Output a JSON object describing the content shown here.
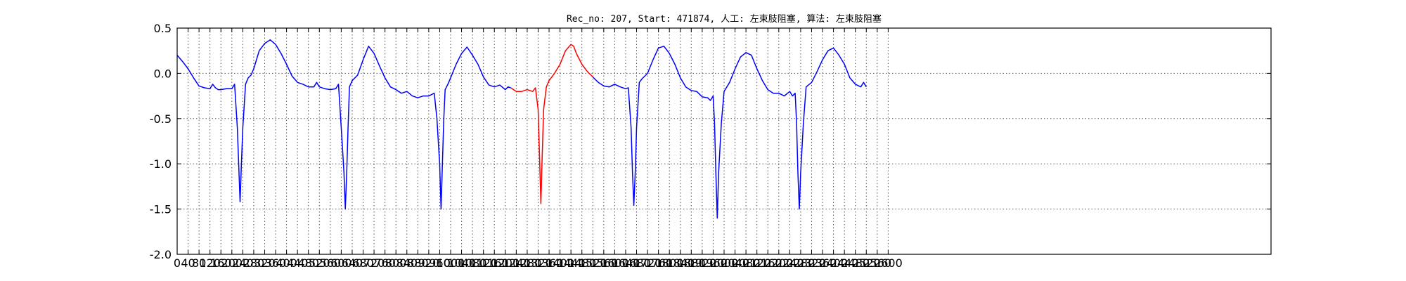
{
  "chart_data": {
    "type": "line",
    "title": "Rec_no: 207, Start: 471874, 人工: 左束肢阻塞, 算法: 左束肢阻塞",
    "xlabel": "",
    "ylabel": "",
    "xlim": [
      0,
      4000
    ],
    "ylim": [
      -2.0,
      0.5
    ],
    "yticks": [
      -2.0,
      -1.5,
      -1.0,
      -0.5,
      0.0,
      0.5
    ],
    "xticks": [
      0,
      40,
      80,
      120,
      160,
      200,
      240,
      280,
      320,
      360,
      400,
      440,
      480,
      520,
      560,
      600,
      640,
      680,
      720,
      760,
      800,
      840,
      880,
      920,
      960,
      1000,
      1040,
      1080,
      1120,
      1160,
      1200,
      1240,
      1280,
      1320,
      1360,
      1400,
      1440,
      1480,
      1520,
      1560,
      1600,
      1640,
      1680,
      1720,
      1760,
      1800,
      1840,
      1880,
      1920,
      1960,
      2000,
      2040,
      2080,
      2120,
      2160,
      2200,
      2240,
      2280,
      2320,
      2360,
      2400,
      2440,
      2480,
      2520,
      2560,
      2600
    ],
    "grid": true,
    "series": [
      {
        "color": "#0000ff",
        "x": [
          0,
          20,
          40,
          60,
          80,
          100,
          120,
          130,
          140,
          150,
          160,
          180,
          200,
          210,
          220,
          225,
          230,
          235,
          240,
          250,
          260,
          270,
          280,
          290,
          300,
          320,
          340,
          360,
          380,
          400,
          420,
          440,
          460,
          480,
          500,
          510,
          520,
          540,
          560,
          580,
          590,
          600,
          610,
          615,
          620,
          625,
          630,
          640,
          660,
          680,
          700,
          720,
          740,
          760,
          780,
          800,
          820,
          840,
          860,
          880,
          900,
          920,
          940,
          950,
          960,
          965,
          970,
          975,
          980,
          990,
          1000,
          1020,
          1040,
          1060,
          1080,
          1100,
          1120,
          1140,
          1160,
          1180,
          1200,
          1210,
          1220
        ],
        "y": [
          0.2,
          0.13,
          0.05,
          -0.05,
          -0.14,
          -0.16,
          -0.17,
          -0.12,
          -0.16,
          -0.18,
          -0.18,
          -0.17,
          -0.17,
          -0.12,
          -0.6,
          -1.0,
          -1.42,
          -1.0,
          -0.6,
          -0.12,
          -0.05,
          -0.02,
          0.05,
          0.15,
          0.25,
          0.33,
          0.37,
          0.32,
          0.22,
          0.1,
          -0.03,
          -0.1,
          -0.12,
          -0.15,
          -0.15,
          -0.1,
          -0.15,
          -0.17,
          -0.18,
          -0.17,
          -0.12,
          -0.6,
          -1.1,
          -1.5,
          -1.1,
          -0.6,
          -0.15,
          -0.08,
          -0.02,
          0.15,
          0.3,
          0.22,
          0.08,
          -0.05,
          -0.15,
          -0.18,
          -0.22,
          -0.2,
          -0.25,
          -0.27,
          -0.25,
          -0.25,
          -0.22,
          -0.5,
          -1.0,
          -1.5,
          -1.0,
          -0.5,
          -0.18,
          -0.12,
          -0.05,
          0.1,
          0.22,
          0.29,
          0.2,
          0.1,
          -0.04,
          -0.13,
          -0.15,
          -0.13,
          -0.18,
          -0.15,
          -0.16
        ]
      },
      {
        "color": "#ff0000",
        "x": [
          1220,
          1240,
          1260,
          1280,
          1300,
          1310,
          1320,
          1325,
          1330,
          1335,
          1340,
          1350,
          1360,
          1380,
          1400,
          1420,
          1440,
          1450,
          1460,
          1480,
          1500,
          1520
        ],
        "y": [
          -0.16,
          -0.2,
          -0.2,
          -0.18,
          -0.2,
          -0.16,
          -0.4,
          -0.9,
          -1.44,
          -0.9,
          -0.4,
          -0.15,
          -0.08,
          0.0,
          0.1,
          0.25,
          0.32,
          0.3,
          0.22,
          0.1,
          0.02,
          -0.04
        ]
      },
      {
        "color": "#0000ff",
        "x": [
          1520,
          1540,
          1560,
          1580,
          1600,
          1620,
          1640,
          1650,
          1660,
          1665,
          1670,
          1675,
          1680,
          1690,
          1700,
          1720,
          1740,
          1760,
          1780,
          1800,
          1820,
          1840,
          1860,
          1880,
          1900,
          1920,
          1940,
          1950,
          1960,
          1965,
          1970,
          1975,
          1980,
          1990,
          2000,
          2020,
          2040,
          2060,
          2080,
          2100,
          2120,
          2140,
          2160,
          2180,
          2200,
          2220,
          2240,
          2250,
          2260,
          2265,
          2270,
          2275,
          2280,
          2290,
          2300,
          2320,
          2340,
          2360,
          2380,
          2400,
          2420,
          2440,
          2460,
          2480,
          2500,
          2510,
          2520
        ],
        "y": [
          -0.04,
          -0.1,
          -0.14,
          -0.15,
          -0.12,
          -0.15,
          -0.17,
          -0.16,
          -0.6,
          -1.1,
          -1.46,
          -1.1,
          -0.6,
          -0.1,
          -0.06,
          0.0,
          0.15,
          0.28,
          0.3,
          0.22,
          0.1,
          -0.05,
          -0.15,
          -0.19,
          -0.2,
          -0.26,
          -0.27,
          -0.3,
          -0.25,
          -0.55,
          -1.1,
          -1.6,
          -1.1,
          -0.55,
          -0.2,
          -0.1,
          0.05,
          0.18,
          0.23,
          0.2,
          0.05,
          -0.08,
          -0.18,
          -0.22,
          -0.22,
          -0.25,
          -0.2,
          -0.25,
          -0.22,
          -0.55,
          -1.1,
          -1.5,
          -1.1,
          -0.55,
          -0.15,
          -0.1,
          0.02,
          0.15,
          0.25,
          0.28,
          0.2,
          0.1,
          -0.05,
          -0.12,
          -0.15,
          -0.1,
          -0.15
        ]
      }
    ]
  }
}
